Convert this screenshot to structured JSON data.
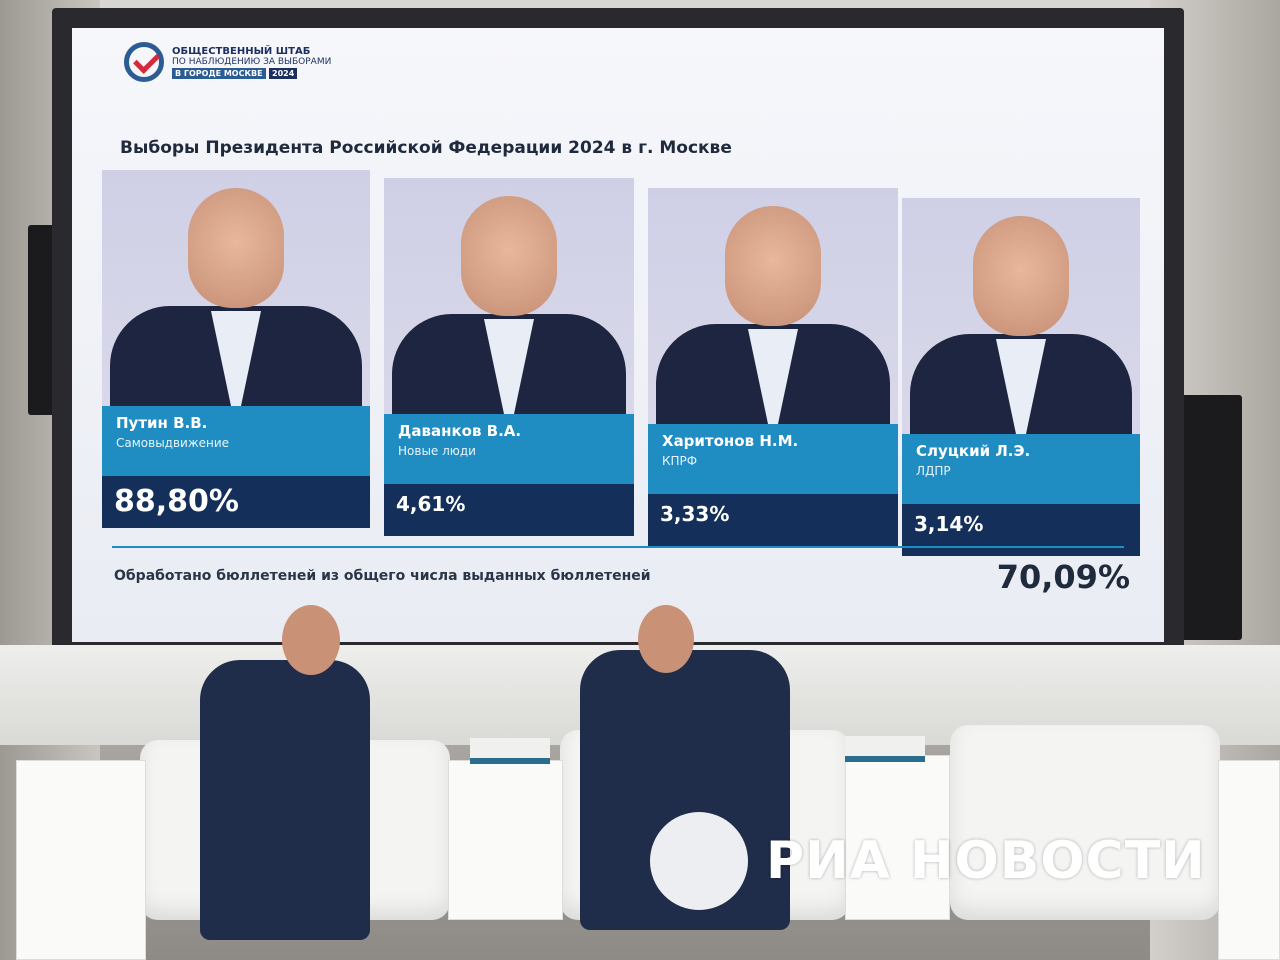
{
  "screen": {
    "logo": {
      "line1": "ОБЩЕСТВЕННЫЙ ШТАБ",
      "line2": "ПО НАБЛЮДЕНИЮ ЗА ВЫБОРАМИ",
      "line3": "В ГОРОДЕ МОСКВЕ",
      "year": "2024"
    },
    "title": "Выборы Президента Российской Федерации 2024 в г. Москве",
    "candidates": [
      {
        "name": "Путин В.В.",
        "party": "Самовыдвижение",
        "percent": "88,80%",
        "value": 88.8
      },
      {
        "name": "Даванков В.А.",
        "party": "Новые люди",
        "percent": "4,61%",
        "value": 4.61
      },
      {
        "name": "Харитонов Н.М.",
        "party": "КПРФ",
        "percent": "3,33%",
        "value": 3.33
      },
      {
        "name": "Слуцкий Л.Э.",
        "party": "ЛДПР",
        "percent": "3,14%",
        "value": 3.14
      }
    ],
    "counted_label": "Обработано бюллетеней из общего числа выданных бюллетеней",
    "counted_value": "70,09%"
  },
  "watermark": {
    "text": "РИА НОВОСТИ"
  },
  "colors": {
    "name_bar": "#1f8dc2",
    "percent_bar": "#14305a",
    "accent_red": "#d32b3b"
  }
}
